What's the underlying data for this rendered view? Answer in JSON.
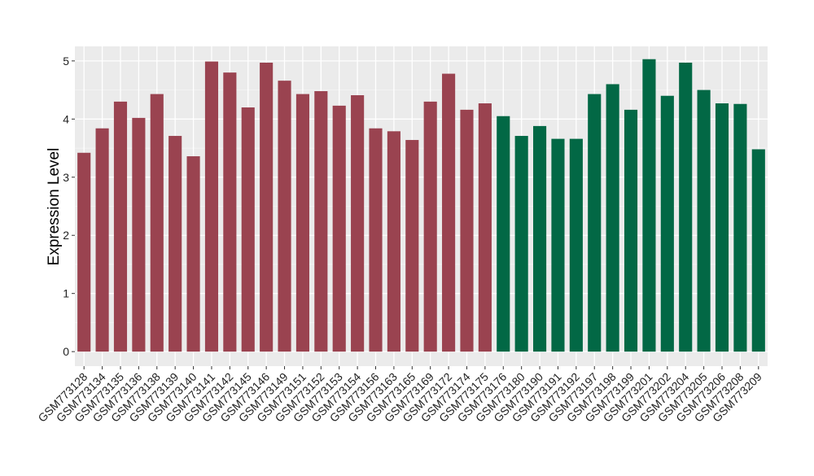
{
  "chart_data": {
    "type": "bar",
    "ylabel": "Expression Level",
    "ylim": [
      -0.25,
      5.25
    ],
    "yticks": [
      0,
      1,
      2,
      3,
      4,
      5
    ],
    "grid": true,
    "legend": "none",
    "categories": [
      "GSM773128",
      "GSM773134",
      "GSM773135",
      "GSM773136",
      "GSM773138",
      "GSM773139",
      "GSM773140",
      "GSM773141",
      "GSM773142",
      "GSM773145",
      "GSM773146",
      "GSM773149",
      "GSM773151",
      "GSM773152",
      "GSM773153",
      "GSM773154",
      "GSM773156",
      "GSM773163",
      "GSM773165",
      "GSM773169",
      "GSM773172",
      "GSM773174",
      "GSM773175",
      "GSM773176",
      "GSM773180",
      "GSM773190",
      "GSM773191",
      "GSM773192",
      "GSM773197",
      "GSM773198",
      "GSM773199",
      "GSM773201",
      "GSM773202",
      "GSM773204",
      "GSM773205",
      "GSM773206",
      "GSM773208",
      "GSM773209"
    ],
    "values": [
      3.42,
      3.84,
      4.3,
      4.02,
      4.43,
      3.71,
      3.36,
      4.99,
      4.8,
      4.2,
      4.97,
      4.66,
      4.43,
      4.48,
      4.23,
      4.41,
      3.84,
      3.79,
      3.64,
      4.3,
      4.78,
      4.16,
      4.27,
      4.05,
      3.71,
      3.88,
      3.66,
      3.66,
      4.43,
      4.6,
      4.16,
      5.03,
      4.4,
      4.97,
      4.5,
      4.27,
      4.26,
      3.48
    ],
    "group_sizes": [
      23,
      15
    ],
    "colors": [
      "#9a4350",
      "#026845"
    ]
  }
}
